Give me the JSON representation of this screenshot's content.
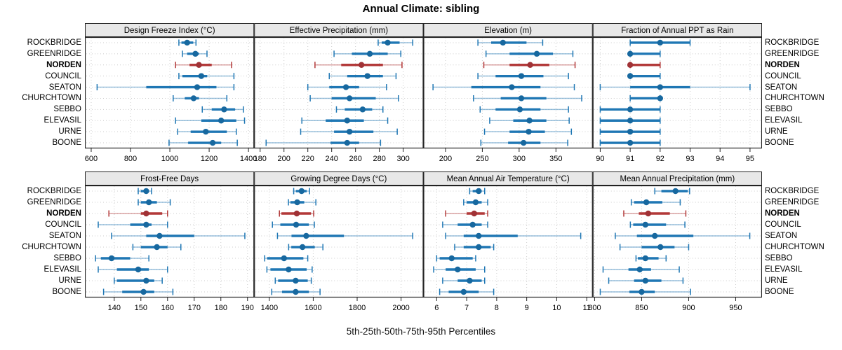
{
  "title": "Annual Climate: sibling",
  "footer": "5th-25th-50th-75th-95th Percentiles",
  "sites": [
    "ROCKBRIDGE",
    "GREENRIDGE",
    "NORDEN",
    "COUNCIL",
    "SEATON",
    "CHURCHTOWN",
    "SEBBO",
    "ELEVASIL",
    "URNE",
    "BOONE"
  ],
  "highlight_site": "NORDEN",
  "colors": {
    "normal_line": "#1f77b4",
    "normal_dot": "#17689f",
    "highlight_line": "#b23939",
    "highlight_dot": "#a03236",
    "strip_bg": "#e8e8e8",
    "panel_border": "#222222",
    "gridline": "#cccccc"
  },
  "percentiles_shown": [
    5,
    25,
    50,
    75,
    95
  ],
  "chart_data": [
    {
      "type": "dotplot-percentiles",
      "title": "Design Freeze Index (°C)",
      "xlim": [
        568,
        1429
      ],
      "ticks": [
        600,
        800,
        1000,
        1200,
        1400
      ],
      "series": {
        "ROCKBRIDGE": [
          1046,
          1059,
          1088,
          1119,
          1133
        ],
        "GREENRIDGE": [
          1064,
          1088,
          1130,
          1148,
          1189
        ],
        "NORDEN": [
          1029,
          1100,
          1148,
          1213,
          1314
        ],
        "COUNCIL": [
          1046,
          1064,
          1160,
          1190,
          1326
        ],
        "SEATON": [
          630,
          880,
          1139,
          1237,
          1326
        ],
        "CHURCHTOWN": [
          1017,
          1076,
          1121,
          1148,
          1290
        ],
        "SEBBO": [
          1165,
          1213,
          1276,
          1332,
          1374
        ],
        "ELEVASIL": [
          1029,
          1160,
          1261,
          1338,
          1380
        ],
        "URNE": [
          1040,
          1106,
          1183,
          1290,
          1338
        ],
        "BOONE": [
          996,
          1093,
          1218,
          1261,
          1343
        ]
      }
    },
    {
      "type": "dotplot-percentiles",
      "title": "Effective Precipitation (mm)",
      "xlim": [
        175,
        317
      ],
      "ticks": [
        180,
        200,
        220,
        240,
        260,
        280,
        300
      ],
      "series": {
        "ROCKBRIDGE": [
          279,
          282,
          287,
          297,
          308
        ],
        "GREENRIDGE": [
          242,
          257,
          272,
          287,
          298
        ],
        "NORDEN": [
          226,
          248,
          265,
          283,
          299
        ],
        "COUNCIL": [
          238,
          253,
          270,
          283,
          294
        ],
        "SEATON": [
          220,
          238,
          252,
          263,
          286
        ],
        "CHURCHTOWN": [
          222,
          240,
          255,
          277,
          296
        ],
        "SEBBO": [
          244,
          251,
          266,
          274,
          283
        ],
        "ELEVASIL": [
          215,
          235,
          253,
          267,
          287
        ],
        "URNE": [
          214,
          242,
          255,
          275,
          295
        ],
        "BOONE": [
          185,
          239,
          253,
          263,
          281
        ]
      }
    },
    {
      "type": "dotplot-percentiles",
      "title": "Elevation (m)",
      "xlim": [
        170,
        400
      ],
      "ticks": [
        200,
        250,
        300,
        350
      ],
      "series": {
        "ROCKBRIDGE": [
          244,
          262,
          278,
          310,
          332
        ],
        "GREENRIDGE": [
          255,
          287,
          324,
          346,
          373
        ],
        "NORDEN": [
          252,
          287,
          315,
          341,
          376
        ],
        "COUNCIL": [
          244,
          268,
          303,
          333,
          367
        ],
        "SEATON": [
          183,
          235,
          290,
          329,
          375
        ],
        "CHURCHTOWN": [
          238,
          275,
          303,
          337,
          385
        ],
        "SEBBO": [
          247,
          268,
          301,
          329,
          367
        ],
        "ELEVASIL": [
          260,
          292,
          314,
          337,
          368
        ],
        "URNE": [
          253,
          287,
          313,
          335,
          371
        ],
        "BOONE": [
          248,
          285,
          306,
          329,
          366
        ]
      }
    },
    {
      "type": "dotplot-percentiles",
      "title": "Fraction of Annual PPT as Rain",
      "xlim": [
        89.75,
        95.4
      ],
      "ticks": [
        90,
        91,
        92,
        93,
        94,
        95
      ],
      "series": {
        "ROCKBRIDGE": [
          91,
          91,
          92,
          93,
          93
        ],
        "GREENRIDGE": [
          91,
          91,
          91,
          92,
          92
        ],
        "NORDEN": [
          91,
          91,
          91,
          92,
          92
        ],
        "COUNCIL": [
          91,
          91,
          91,
          92,
          92
        ],
        "SEATON": [
          90,
          91,
          92,
          93,
          95
        ],
        "CHURCHTOWN": [
          91,
          91,
          92,
          92,
          92
        ],
        "SEBBO": [
          90,
          90,
          91,
          92,
          92
        ],
        "ELEVASIL": [
          90,
          90,
          91,
          92,
          92
        ],
        "URNE": [
          90,
          90,
          91,
          92,
          92
        ],
        "BOONE": [
          90,
          90,
          91,
          92,
          92
        ]
      }
    },
    {
      "type": "dotplot-percentiles",
      "title": "Frost-Free Days",
      "xlim": [
        129,
        192.5
      ],
      "ticks": [
        140,
        150,
        160,
        170,
        180,
        190
      ],
      "series": {
        "ROCKBRIDGE": [
          149,
          150,
          152,
          153,
          154
        ],
        "GREENRIDGE": [
          149,
          150,
          153,
          156,
          161
        ],
        "NORDEN": [
          138,
          150,
          152,
          158,
          160
        ],
        "COUNCIL": [
          134,
          146,
          152,
          154,
          160
        ],
        "SEATON": [
          139,
          152,
          157,
          170,
          189
        ],
        "CHURCHTOWN": [
          147,
          150,
          156,
          160,
          165
        ],
        "SEBBO": [
          133,
          135,
          139,
          146,
          153
        ],
        "ELEVASIL": [
          134,
          141,
          149,
          153,
          160
        ],
        "URNE": [
          140,
          141,
          152,
          155,
          158
        ],
        "BOONE": [
          136,
          143,
          151,
          155,
          162
        ]
      }
    },
    {
      "type": "dotplot-percentiles",
      "title": "Growing Degree Days (°C)",
      "xlim": [
        1331,
        2102
      ],
      "ticks": [
        1400,
        1600,
        1800,
        2000
      ],
      "series": {
        "ROCKBRIDGE": [
          1511,
          1521,
          1547,
          1570,
          1583
        ],
        "GREENRIDGE": [
          1487,
          1496,
          1527,
          1559,
          1612
        ],
        "NORDEN": [
          1446,
          1455,
          1525,
          1590,
          1602
        ],
        "COUNCIL": [
          1414,
          1450,
          1522,
          1580,
          1605
        ],
        "SEATON": [
          1437,
          1501,
          1568,
          1740,
          2053
        ],
        "CHURCHTOWN": [
          1488,
          1500,
          1551,
          1607,
          1644
        ],
        "SEBBO": [
          1379,
          1390,
          1467,
          1555,
          1575
        ],
        "ELEVASIL": [
          1389,
          1405,
          1488,
          1570,
          1595
        ],
        "URNE": [
          1427,
          1440,
          1520,
          1575,
          1591
        ],
        "BOONE": [
          1411,
          1458,
          1520,
          1580,
          1631
        ]
      }
    },
    {
      "type": "dotplot-percentiles",
      "title": "Mean Annual Air Temperature (°C)",
      "xlim": [
        5.56,
        11.2
      ],
      "ticks": [
        6,
        7,
        8,
        9,
        10,
        11
      ],
      "series": {
        "ROCKBRIDGE": [
          7.1,
          7.2,
          7.4,
          7.5,
          7.6
        ],
        "GREENRIDGE": [
          6.9,
          7.0,
          7.3,
          7.5,
          7.7
        ],
        "NORDEN": [
          6.3,
          7.0,
          7.25,
          7.6,
          7.7
        ],
        "COUNCIL": [
          6.2,
          6.7,
          7.2,
          7.5,
          7.7
        ],
        "SEATON": [
          6.3,
          6.9,
          7.4,
          8.7,
          10.8
        ],
        "CHURCHTOWN": [
          6.6,
          6.9,
          7.4,
          7.8,
          7.9
        ],
        "SEBBO": [
          6.0,
          6.1,
          6.5,
          7.2,
          7.3
        ],
        "ELEVASIL": [
          5.9,
          6.3,
          6.7,
          7.3,
          7.6
        ],
        "URNE": [
          6.2,
          6.7,
          7.1,
          7.5,
          7.6
        ],
        "BOONE": [
          6.1,
          6.4,
          6.9,
          7.4,
          7.9
        ]
      }
    },
    {
      "type": "dotplot-percentiles",
      "title": "Mean Annual Precipitation (mm)",
      "xlim": [
        798,
        978
      ],
      "ticks": [
        800,
        850,
        900,
        950
      ],
      "series": {
        "ROCKBRIDGE": [
          864,
          871,
          886,
          899,
          901
        ],
        "GREENRIDGE": [
          839,
          842,
          855,
          872,
          891
        ],
        "NORDEN": [
          831,
          847,
          857,
          880,
          897
        ],
        "COUNCIL": [
          838,
          841,
          854,
          876,
          896
        ],
        "SEATON": [
          822,
          845,
          864,
          905,
          965
        ],
        "CHURCHTOWN": [
          827,
          850,
          870,
          885,
          900
        ],
        "SEBBO": [
          844,
          846,
          854,
          868,
          876
        ],
        "ELEVASIL": [
          809,
          836,
          848,
          860,
          890
        ],
        "URNE": [
          815,
          842,
          854,
          871,
          894
        ],
        "BOONE": [
          806,
          837,
          850,
          864,
          902
        ]
      }
    }
  ]
}
